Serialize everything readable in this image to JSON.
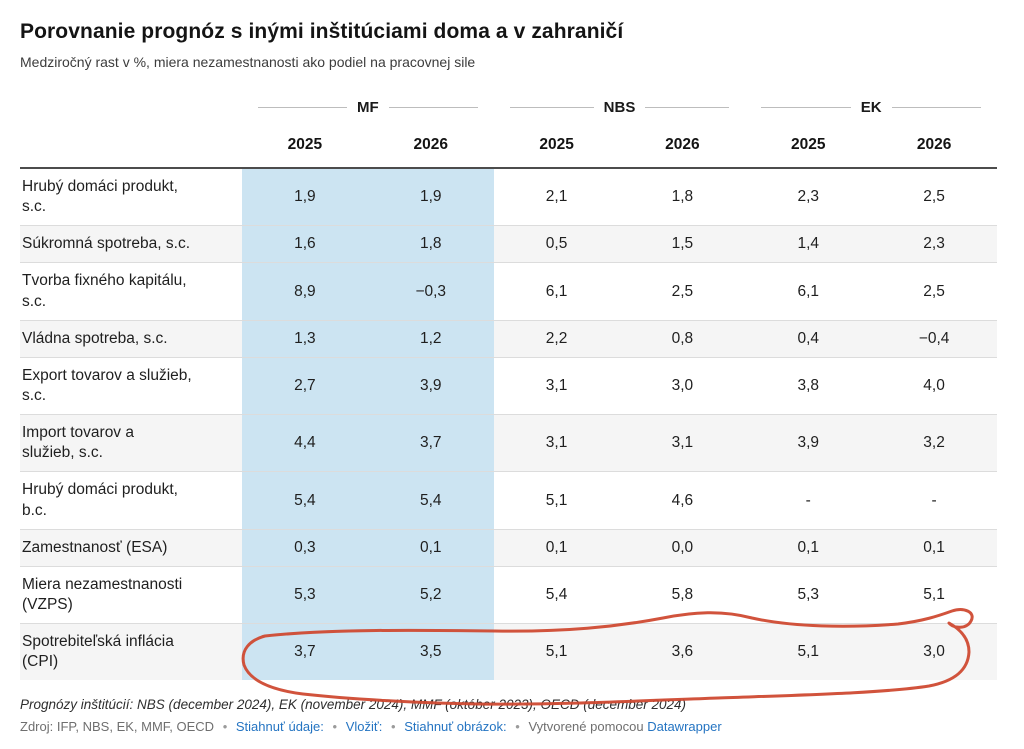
{
  "header": {
    "title": "Porovnanie prognóz s inými inštitúciami doma a v zahraničí",
    "subtitle": "Medziročný rast v %, miera nezamestnanosti ako podiel na pracovnej sile"
  },
  "table": {
    "groups": [
      {
        "label": "MF"
      },
      {
        "label": "NBS"
      },
      {
        "label": "EK"
      }
    ],
    "year_headers": [
      "2025",
      "2026",
      "2025",
      "2026",
      "2025",
      "2026"
    ],
    "highlight_col_count": 2,
    "highlight_color": "#cce4f2",
    "rows": [
      {
        "label": "Hrubý domáci produkt,\ns.c.",
        "values": [
          "1,9",
          "1,9",
          "2,1",
          "1,8",
          "2,3",
          "2,5"
        ]
      },
      {
        "label": "Súkromná spotreba, s.c.",
        "values": [
          "1,6",
          "1,8",
          "0,5",
          "1,5",
          "1,4",
          "2,3"
        ]
      },
      {
        "label": "Tvorba fixného kapitálu,\ns.c.",
        "values": [
          "8,9",
          "−0,3",
          "6,1",
          "2,5",
          "6,1",
          "2,5"
        ]
      },
      {
        "label": "Vládna spotreba, s.c.",
        "values": [
          "1,3",
          "1,2",
          "2,2",
          "0,8",
          "0,4",
          "−0,4"
        ]
      },
      {
        "label": "Export tovarov a služieb,\ns.c.",
        "values": [
          "2,7",
          "3,9",
          "3,1",
          "3,0",
          "3,8",
          "4,0"
        ]
      },
      {
        "label": "Import tovarov a\nslužieb, s.c.",
        "values": [
          "4,4",
          "3,7",
          "3,1",
          "3,1",
          "3,9",
          "3,2"
        ]
      },
      {
        "label": "Hrubý domáci produkt,\nb.c.",
        "values": [
          "5,4",
          "5,4",
          "5,1",
          "4,6",
          "-",
          "-"
        ]
      },
      {
        "label": "Zamestnanosť (ESA)",
        "values": [
          "0,3",
          "0,1",
          "0,1",
          "0,0",
          "0,1",
          "0,1"
        ]
      },
      {
        "label": "Miera nezamestnanosti\n(VZPS)",
        "values": [
          "5,3",
          "5,2",
          "5,4",
          "5,8",
          "5,3",
          "5,1"
        ]
      },
      {
        "label": "Spotrebiteľská inflácia\n(CPI)",
        "values": [
          "3,7",
          "3,5",
          "5,1",
          "3,6",
          "5,1",
          "3,0"
        ]
      }
    ]
  },
  "annotation": {
    "description": "hand-drawn red circle around the Spotrebiteľská inflácia (CPI) row values",
    "color": "#cf4a31"
  },
  "footer": {
    "note": "Prognózy inštitúcií: NBS (december 2024), EK (november 2024), MMF (október 2023), OECD (december 2024)",
    "source_label": "Zdroj: IFP, NBS, EK, MMF, OECD",
    "separator": "•",
    "links": [
      {
        "label": "Stiahnuť údaje:"
      },
      {
        "label": "Vložiť:"
      },
      {
        "label": "Stiahnuť obrázok:"
      }
    ],
    "credit_prefix": "Vytvorené pomocou",
    "credit_link": "Datawrapper",
    "link_color": "#2474c2"
  },
  "chart_data": {
    "type": "table",
    "title": "Porovnanie prognóz s inými inštitúciami doma a v zahraničí",
    "subtitle": "Medziročný rast v %, miera nezamestnanosti ako podiel na pracovnej sile",
    "column_groups": [
      "MF",
      "NBS",
      "EK"
    ],
    "columns": [
      "MF 2025",
      "MF 2026",
      "NBS 2025",
      "NBS 2026",
      "EK 2025",
      "EK 2026"
    ],
    "highlighted_columns": [
      "MF 2025",
      "MF 2026"
    ],
    "rows": [
      {
        "label": "Hrubý domáci produkt, s.c.",
        "values": [
          1.9,
          1.9,
          2.1,
          1.8,
          2.3,
          2.5
        ]
      },
      {
        "label": "Súkromná spotreba, s.c.",
        "values": [
          1.6,
          1.8,
          0.5,
          1.5,
          1.4,
          2.3
        ]
      },
      {
        "label": "Tvorba fixného kapitálu, s.c.",
        "values": [
          8.9,
          -0.3,
          6.1,
          2.5,
          6.1,
          2.5
        ]
      },
      {
        "label": "Vládna spotreba, s.c.",
        "values": [
          1.3,
          1.2,
          2.2,
          0.8,
          0.4,
          -0.4
        ]
      },
      {
        "label": "Export tovarov a služieb, s.c.",
        "values": [
          2.7,
          3.9,
          3.1,
          3.0,
          3.8,
          4.0
        ]
      },
      {
        "label": "Import tovarov a služieb, s.c.",
        "values": [
          4.4,
          3.7,
          3.1,
          3.1,
          3.9,
          3.2
        ]
      },
      {
        "label": "Hrubý domáci produkt, b.c.",
        "values": [
          5.4,
          5.4,
          5.1,
          4.6,
          null,
          null
        ]
      },
      {
        "label": "Zamestnanosť (ESA)",
        "values": [
          0.3,
          0.1,
          0.1,
          0.0,
          0.1,
          0.1
        ]
      },
      {
        "label": "Miera nezamestnanosti (VZPS)",
        "values": [
          5.3,
          5.2,
          5.4,
          5.8,
          5.3,
          5.1
        ]
      },
      {
        "label": "Spotrebiteľská inflácia (CPI)",
        "values": [
          3.7,
          3.5,
          5.1,
          3.6,
          5.1,
          3.0
        ]
      }
    ],
    "annotations": [
      "hand-drawn red ellipse circling the Spotrebiteľská inflácia (CPI) row"
    ]
  }
}
